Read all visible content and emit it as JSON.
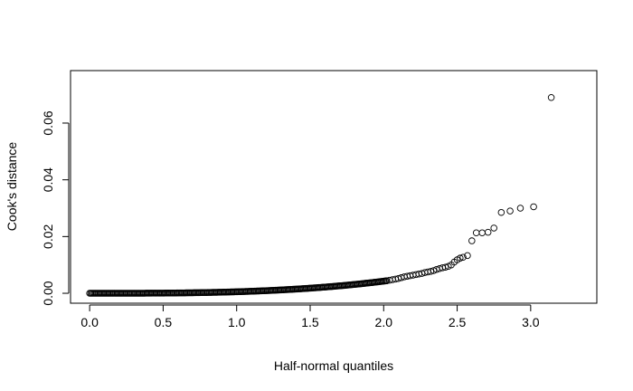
{
  "chart_data": {
    "type": "scatter",
    "xlabel": "Half-normal quantiles",
    "ylabel": "Cook's distance",
    "xlim": [
      -0.13,
      3.45
    ],
    "ylim": [
      -0.0035,
      0.0785
    ],
    "x_ticks": [
      0.0,
      0.5,
      1.0,
      1.5,
      2.0,
      2.5,
      3.0
    ],
    "x_tick_labels": [
      "0.0",
      "0.5",
      "1.0",
      "1.5",
      "2.0",
      "2.5",
      "3.0"
    ],
    "y_ticks": [
      0.0,
      0.02,
      0.04,
      0.06
    ],
    "y_tick_labels": [
      "0.00",
      "0.02",
      "0.04",
      "0.06"
    ],
    "marker": "open-circle",
    "grid": false,
    "points": [
      [
        3.14,
        0.069
      ],
      [
        3.02,
        0.0305
      ],
      [
        2.93,
        0.03
      ],
      [
        2.86,
        0.029
      ],
      [
        2.8,
        0.0285
      ],
      [
        2.75,
        0.023
      ],
      [
        2.71,
        0.0215
      ],
      [
        2.67,
        0.0213
      ],
      [
        2.63,
        0.0213
      ],
      [
        2.6,
        0.0185
      ],
      [
        2.57,
        0.0133
      ],
      [
        2.54,
        0.0127
      ],
      [
        2.52,
        0.0124
      ],
      [
        2.5,
        0.0118
      ],
      [
        2.48,
        0.011
      ],
      [
        2.46,
        0.01
      ],
      [
        2.44,
        0.0095
      ],
      [
        2.42,
        0.0092
      ],
      [
        2.4,
        0.009
      ],
      [
        2.38,
        0.0087
      ],
      [
        2.36,
        0.0084
      ],
      [
        2.34,
        0.008
      ],
      [
        2.32,
        0.0077
      ],
      [
        2.3,
        0.0075
      ],
      [
        2.28,
        0.0073
      ],
      [
        2.26,
        0.007
      ],
      [
        2.24,
        0.0068
      ],
      [
        2.22,
        0.0066
      ],
      [
        2.2,
        0.0064
      ],
      [
        2.18,
        0.0062
      ],
      [
        2.16,
        0.006
      ],
      [
        2.14,
        0.0058
      ],
      [
        2.12,
        0.0055
      ],
      [
        2.1,
        0.0052
      ],
      [
        2.08,
        0.005
      ],
      [
        2.06,
        0.0048
      ],
      [
        2.04,
        0.0046
      ],
      [
        2.02,
        0.0044
      ]
    ],
    "curve_points_note": "",
    "dense_curve": {
      "x_start": 0.0,
      "x_end": 2.02,
      "y_end": 0.0044,
      "exponent": 3.0,
      "count": 260
    }
  }
}
